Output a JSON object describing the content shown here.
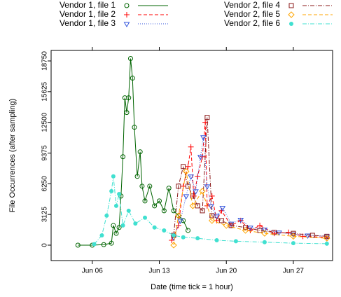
{
  "chart_data": {
    "type": "line",
    "x_label": "Date (time tick = 1 hour)",
    "y_label": "File Occurrences (after sampling)",
    "xlim": [
      1.7,
      31.1
    ],
    "ylim": [
      -1570,
      19820
    ],
    "xticks": [
      {
        "value": 6,
        "label": "Jun 06"
      },
      {
        "value": 13,
        "label": "Jun 13"
      },
      {
        "value": 20,
        "label": "Jun 20"
      },
      {
        "value": 27,
        "label": "Jun 27"
      }
    ],
    "yticks": [
      0,
      3125,
      6250,
      9375,
      12500,
      15625,
      18750
    ],
    "series": [
      {
        "name": "Vendor 1, file 1",
        "color": "#006400",
        "marker": "circle",
        "linestyle": "solid",
        "x": [
          4.5,
          6,
          7.2,
          8.0,
          8.2,
          8.5,
          8.8,
          9.0,
          9.2,
          9.4,
          9.6,
          9.8,
          10.0,
          10.2,
          10.4,
          10.7,
          11.0,
          11.2,
          11.5,
          12.0,
          12.5,
          13.0,
          13.5,
          14.0,
          14.5,
          15.0,
          15.5,
          16.0
        ],
        "values": [
          0,
          0,
          50,
          200,
          2000,
          1200,
          1800,
          5000,
          9000,
          15000,
          13500,
          15000,
          19000,
          17000,
          12000,
          7000,
          9500,
          6000,
          4500,
          6000,
          4000,
          4500,
          3500,
          5800,
          3500,
          3000,
          2500,
          1500
        ]
      },
      {
        "name": "Vendor 1, file 2",
        "color": "#ff0000",
        "marker": "plus",
        "linestyle": "dashed",
        "x": [
          14.3,
          15,
          15.5,
          16,
          16.3,
          16.6,
          17,
          17.5,
          17.8,
          18,
          18.5,
          19,
          19.5,
          20.5,
          21.5,
          22.5,
          23.5,
          25,
          26.5,
          28,
          30.5
        ],
        "values": [
          500,
          2000,
          6000,
          8000,
          10000,
          5000,
          7000,
          9000,
          12500,
          4000,
          5000,
          2500,
          3500,
          2000,
          2500,
          1500,
          2000,
          1200,
          1300,
          900,
          800
        ]
      },
      {
        "name": "Vendor 1, file 3",
        "color": "#3355dd",
        "marker": "triangle",
        "linestyle": "dotted",
        "x": [
          14.5,
          15.2,
          15.8,
          16.3,
          16.8,
          17.3,
          17.6,
          18.0,
          18.4,
          19.0,
          19.6,
          20.5,
          21.5,
          22.5,
          24,
          25.5,
          27,
          28.5,
          30.5
        ],
        "values": [
          800,
          2500,
          5000,
          7000,
          5500,
          9000,
          11000,
          6000,
          4000,
          3000,
          3800,
          2200,
          2600,
          1800,
          1600,
          1300,
          1100,
          1000,
          900
        ]
      },
      {
        "name": "Vendor 2, file 4",
        "color": "#8b1a1a",
        "marker": "square",
        "linestyle": "dashdot",
        "x": [
          14.5,
          15.0,
          15.5,
          16.0,
          16.5,
          17.0,
          17.5,
          18.0,
          18.5,
          19.5,
          20.5,
          22,
          23.5,
          25,
          27,
          29,
          30.5
        ],
        "values": [
          1000,
          6000,
          8000,
          6000,
          5000,
          4000,
          3500,
          13000,
          3000,
          2500,
          2000,
          1800,
          1500,
          1300,
          1200,
          1000,
          900
        ]
      },
      {
        "name": "Vendor 2, file 5",
        "color": "#ffa500",
        "marker": "diamond",
        "linestyle": "dashed",
        "x": [
          14.5,
          15.0,
          15.8,
          16.5,
          17.5,
          18.5,
          20,
          22,
          24,
          27,
          30.5
        ],
        "values": [
          0,
          3000,
          7500,
          4000,
          5500,
          2500,
          2000,
          1500,
          1200,
          900,
          700
        ]
      },
      {
        "name": "Vendor 2, file 6",
        "color": "#40e0d0",
        "marker": "dot",
        "linestyle": "dashdot",
        "x": [
          6.2,
          7,
          7.5,
          8.0,
          8.2,
          8.5,
          8.8,
          9.2,
          9.8,
          10.5,
          11.5,
          12.5,
          13.5,
          14.5,
          15.5,
          17,
          19,
          21,
          24,
          27,
          30.5
        ],
        "values": [
          100,
          1000,
          3000,
          5500,
          7000,
          4000,
          5200,
          2000,
          3500,
          2200,
          2800,
          1800,
          1500,
          1000,
          800,
          700,
          500,
          400,
          300,
          200,
          150
        ]
      }
    ]
  }
}
